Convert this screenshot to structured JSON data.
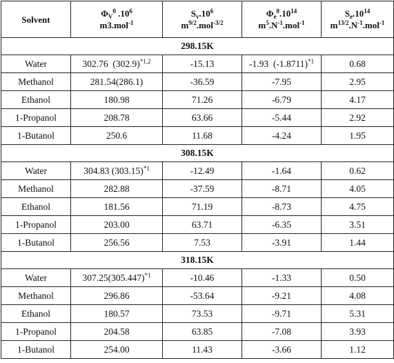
{
  "table": {
    "header": [
      [
        [
          {
            "t": "Solvent"
          }
        ]
      ],
      [
        [
          {
            "t": "Φ"
          },
          {
            "sub": "V"
          },
          {
            "sup": "0"
          },
          {
            "t": " .10"
          },
          {
            "sup": "6"
          }
        ],
        [
          {
            "t": "m3.mol"
          },
          {
            "sup": "-1"
          }
        ]
      ],
      [
        [
          {
            "t": "S"
          },
          {
            "sub": "v"
          },
          {
            "t": ".10"
          },
          {
            "sup": "6"
          }
        ],
        [
          {
            "t": "m"
          },
          {
            "sup": "9/2"
          },
          {
            "t": ".mol"
          },
          {
            "sup": "-3/2"
          }
        ]
      ],
      [
        [
          {
            "t": "Φ"
          },
          {
            "sub": "e"
          },
          {
            "sup": "0"
          },
          {
            "t": ".10"
          },
          {
            "sup": "14"
          }
        ],
        [
          {
            "t": "m"
          },
          {
            "sup": "5"
          },
          {
            "t": ".N"
          },
          {
            "sup": "-1"
          },
          {
            "t": ".mol"
          },
          {
            "sup": "-1"
          }
        ]
      ],
      [
        [
          {
            "t": "S"
          },
          {
            "sub": "e"
          },
          {
            "t": ".10"
          },
          {
            "sup": "14"
          }
        ],
        [
          {
            "t": "m"
          },
          {
            "sup": "13/2"
          },
          {
            "t": ".N"
          },
          {
            "sup": "-1"
          },
          {
            "t": ".mol"
          },
          {
            "sup": "-1"
          }
        ]
      ]
    ],
    "sections": [
      {
        "title": "298.15K",
        "rows": [
          [
            "Water",
            [
              {
                "t": "302.76  (302.9)"
              },
              {
                "sup": "*1,2"
              }
            ],
            "-15.13",
            [
              {
                "t": "-1.93  (-1.8711)"
              },
              {
                "sup": "*1"
              }
            ],
            "0.68"
          ],
          [
            "Methanol",
            "281.54(286.1)",
            "-36.59",
            "-7.95",
            "2.95"
          ],
          [
            "Ethanol",
            "180.98",
            "71.26",
            "-6.79",
            "4.17"
          ],
          [
            "1-Propanol",
            "208.78",
            "63.66",
            "-5.44",
            "2.92"
          ],
          [
            "1-Butanol",
            "250.6",
            "11.68",
            "-4.24",
            "1.95"
          ]
        ]
      },
      {
        "title": "308.15K",
        "rows": [
          [
            "Water",
            [
              {
                "t": "304.83 (303.15)"
              },
              {
                "sup": "*1"
              }
            ],
            "-12.49",
            "-1.64",
            "0.62"
          ],
          [
            "Methanol",
            "282.88",
            "-37.59",
            "-8.71",
            "4.05"
          ],
          [
            "Ethanol",
            "181.56",
            "71.19",
            "-8.73",
            "4.75"
          ],
          [
            "1-Propanol",
            "203.00",
            "63.71",
            "-6.35",
            "3.51"
          ],
          [
            "1-Butanol",
            "256.56",
            "7.53",
            "-3.91",
            "1.44"
          ]
        ]
      },
      {
        "title": "318.15K",
        "rows": [
          [
            "Water",
            [
              {
                "t": "307.25(305.447)"
              },
              {
                "sup": "*1"
              }
            ],
            "-10.46",
            "-1.33",
            "0.50"
          ],
          [
            "Methanol",
            "296.86",
            "-53.64",
            "-9.21",
            "4.08"
          ],
          [
            "Ethanol",
            "180.57",
            "73.53",
            "-9.71",
            "5.31"
          ],
          [
            "1-Propanol",
            "204.58",
            "63.85",
            "-7.08",
            "3.93"
          ],
          [
            "1-Butanol",
            "254.00",
            "11.43",
            "-3.66",
            "1.12"
          ]
        ]
      }
    ]
  }
}
